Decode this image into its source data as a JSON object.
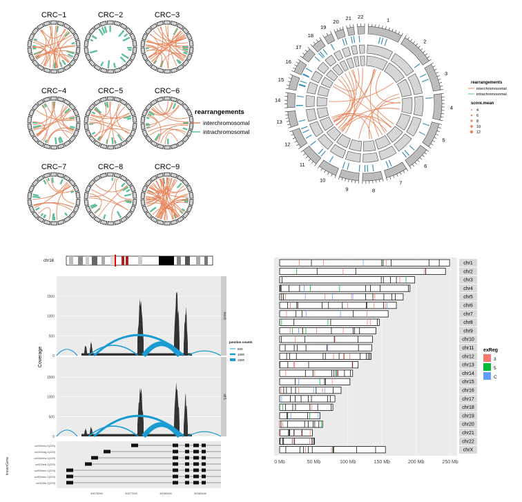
{
  "colors": {
    "inter": "#e8845a",
    "intra": "#5fbf9a",
    "intra_dark": "#3a8fb7",
    "cov_fill": "#333333",
    "arc": "#1a9cd1",
    "strip": "#d9d9d9",
    "panel_bg": "#ebebeb",
    "exreg_3": "#f8766d",
    "exreg_5": "#00ba38",
    "exreg_C": "#619cff"
  },
  "chart_data": [
    {
      "type": "circular-grid",
      "panels": [
        "CRC−1",
        "CRC−2",
        "CRC−3",
        "CRC−4",
        "CRC−5",
        "CRC−6",
        "CRC−7",
        "CRC−8",
        "CRC−9"
      ],
      "legend": {
        "title": "rearrangements",
        "items": [
          "interchromosomal",
          "intrachromosomal"
        ]
      }
    },
    {
      "type": "circos",
      "chromosomes": [
        "1",
        "2",
        "3",
        "4",
        "5",
        "6",
        "7",
        "8",
        "9",
        "10",
        "11",
        "12",
        "13",
        "14",
        "15",
        "16",
        "17",
        "18",
        "19",
        "20",
        "21",
        "22"
      ],
      "legend": {
        "title1": "rearrangements",
        "items1": [
          "interchromosomal",
          "intrachromosomal"
        ],
        "title2": "score.mean",
        "items2": [
          "4",
          "6",
          "8",
          "10",
          "12"
        ]
      }
    },
    {
      "type": "area",
      "ideogram_label": "chr16",
      "y_title": "Coverage",
      "facets": [
        "mock",
        "stiS"
      ],
      "y_ticks": [
        "0",
        "500",
        "1000",
        "1500"
      ],
      "junction_legend": {
        "title": "junction counts",
        "items": [
          "500",
          "1000",
          "1500"
        ]
      },
      "track_label": "knownGene",
      "transcripts": [
        "uc002eev.1(229)",
        "uc010vag.1(229)",
        "uc002eew.1(229)",
        "uc002ext.1(229)",
        "uc002eeo.1(229)",
        "uc002eeu.1(229)",
        "uc010bk.1(229)"
      ],
      "x_ticks": [
        "30075000",
        "30077500",
        "30080000",
        "30082500"
      ]
    },
    {
      "type": "bar",
      "chromosomes": [
        "chr1",
        "chr2",
        "chr3",
        "chr4",
        "chr5",
        "chr6",
        "chr7",
        "chr8",
        "chr9",
        "chr10",
        "chr11",
        "chr12",
        "chr13",
        "chr14",
        "chr15",
        "chr16",
        "chr17",
        "chr18",
        "chr19",
        "chr20",
        "chr21",
        "chr22",
        "chrX"
      ],
      "lengths_mb": [
        249,
        243,
        198,
        191,
        181,
        171,
        159,
        146,
        141,
        136,
        135,
        134,
        115,
        107,
        103,
        90,
        81,
        78,
        59,
        63,
        48,
        51,
        155
      ],
      "x_ticks": [
        "0 Mb",
        "50 Mb",
        "100 Mb",
        "150 Mb",
        "200 Mb",
        "250 Mb"
      ],
      "xlim": [
        0,
        260
      ],
      "legend": {
        "title": "exReg",
        "items": [
          "3",
          "5",
          "C"
        ]
      }
    }
  ]
}
